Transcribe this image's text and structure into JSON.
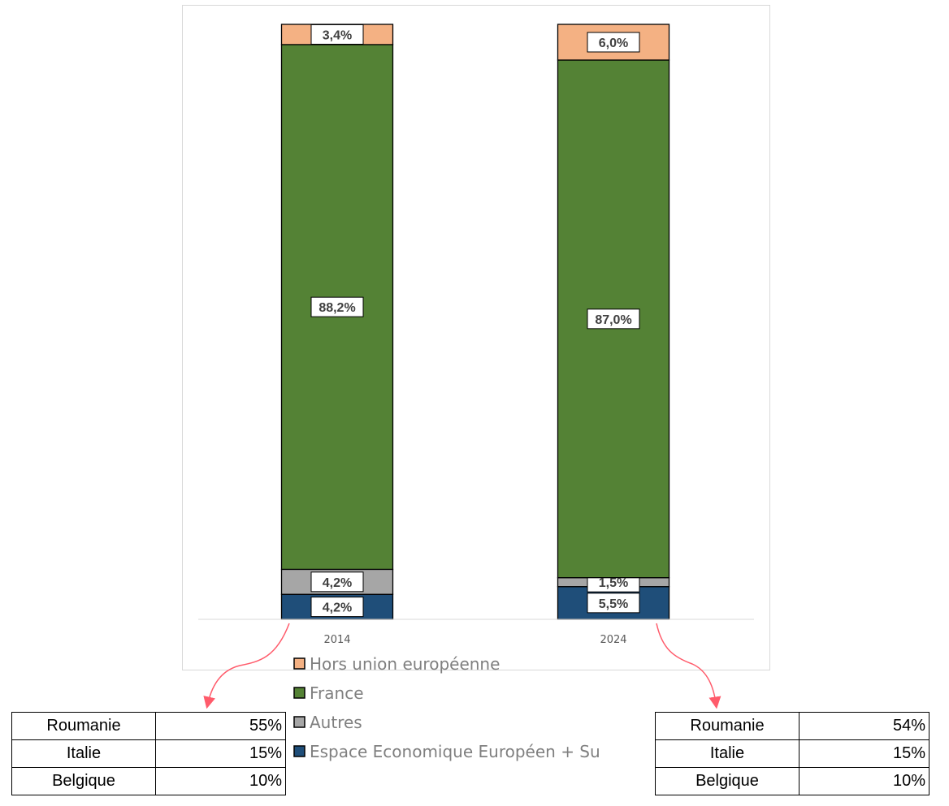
{
  "chart_data": {
    "type": "bar",
    "stacked": true,
    "categories": [
      "2014",
      "2024"
    ],
    "series": [
      {
        "name": "Espace Economique Européen + Su",
        "color": "#1f4e79",
        "values": [
          4.2,
          5.5
        ],
        "labels": [
          "4,2%",
          "5,5%"
        ]
      },
      {
        "name": "Autres",
        "color": "#a6a6a6",
        "values": [
          4.2,
          1.5
        ],
        "labels": [
          "4,2%",
          "1,5%"
        ]
      },
      {
        "name": "France",
        "color": "#548235",
        "values": [
          88.2,
          87.0
        ],
        "labels": [
          "88,2%",
          "87,0%"
        ]
      },
      {
        "name": "Hors union européenne",
        "color": "#f4b183",
        "values": [
          3.4,
          6.0
        ],
        "labels": [
          "3,4%",
          "6,0%"
        ]
      }
    ],
    "ylim": [
      0,
      100
    ],
    "legend_order": [
      "Hors union européenne",
      "France",
      "Autres",
      "Espace Economique Européen + Su"
    ],
    "legend_position": "bottom",
    "grid": false
  },
  "tables": [
    {
      "rows": [
        {
          "country": "Roumanie",
          "pct": "55%"
        },
        {
          "country": "Italie",
          "pct": "15%"
        },
        {
          "country": "Belgique",
          "pct": "10%"
        }
      ]
    },
    {
      "rows": [
        {
          "country": "Roumanie",
          "pct": "54%"
        },
        {
          "country": "Italie",
          "pct": "15%"
        },
        {
          "country": "Belgique",
          "pct": "10%"
        }
      ]
    }
  ],
  "colors": {
    "arrow": "#ff5b6b",
    "axis": "#d9d9d9",
    "bar_outline": "#000000"
  }
}
